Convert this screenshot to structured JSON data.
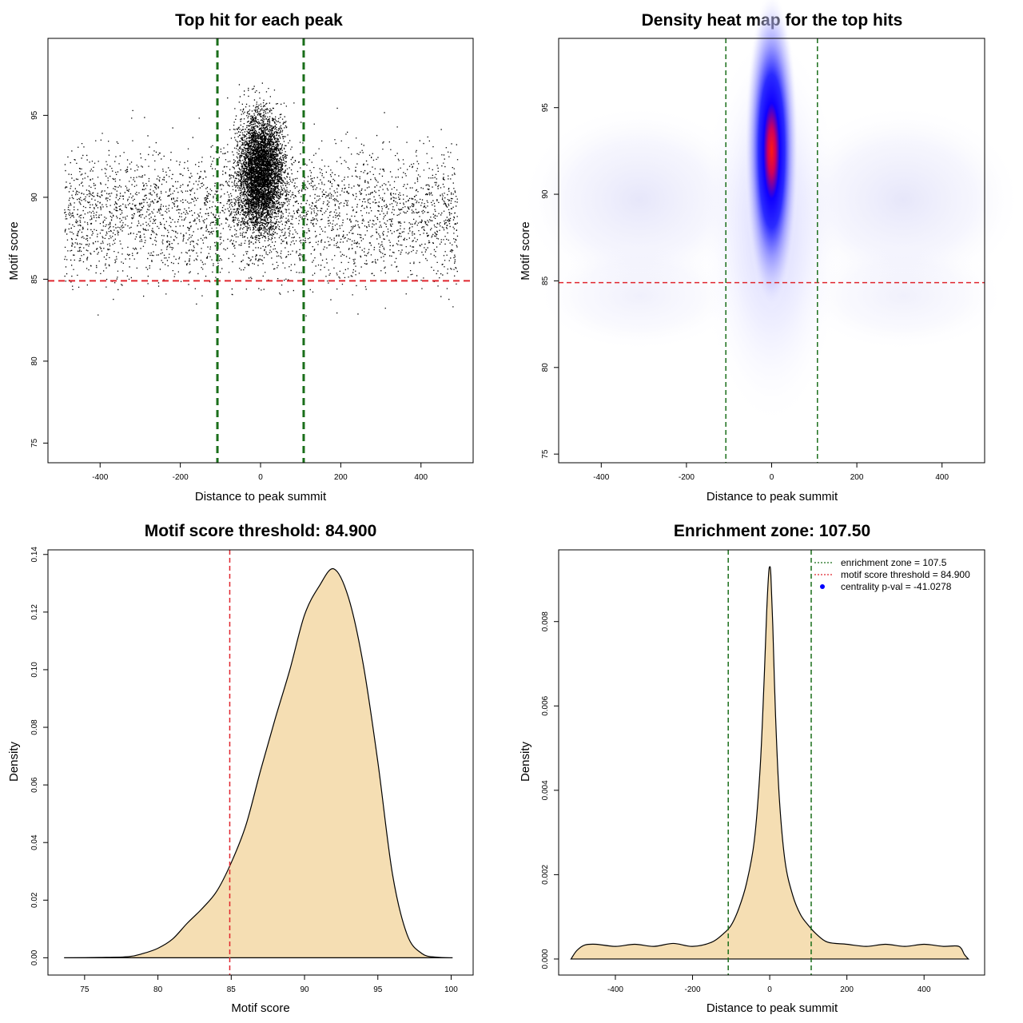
{
  "colors": {
    "threshold_line": "#e0262e",
    "zone_line": "#1a6e1a",
    "density_fill": "#f5deb3",
    "heat_low": "#ffffff",
    "heat_mid": "#0000ff",
    "heat_high": "#ff0000",
    "points": "#000000",
    "legend_dot": "#0000ff"
  },
  "chart_data": [
    {
      "id": "scatter",
      "type": "scatter",
      "title": "Top hit for each peak",
      "xlabel": "Distance to peak summit",
      "ylabel": "Motif score",
      "xlim": [
        -530,
        530
      ],
      "ylim": [
        73.8,
        99.7
      ],
      "xticks": [
        -400,
        -200,
        0,
        200,
        400
      ],
      "xtick_labels": [
        "-400",
        "-200",
        "0",
        "200",
        "400"
      ],
      "yticks": [
        75,
        80,
        85,
        90,
        95
      ],
      "ytick_labels": [
        "75",
        "80",
        "85",
        "90",
        "95"
      ],
      "hline": 84.9,
      "vlines": [
        -107.5,
        107.5
      ],
      "points_note": "Dense cloud of motif hits; high concentration between -100 and 100 bp around score 89-95, sparse background between -490 and 490 bp with scores 80-97"
    },
    {
      "id": "heatmap",
      "type": "heatmap",
      "title": "Density heat map for the top hits",
      "xlabel": "Distance to peak summit",
      "ylabel": "Motif score",
      "xlim": [
        -500,
        500
      ],
      "ylim": [
        74.5,
        99
      ],
      "xticks": [
        -400,
        -200,
        0,
        200,
        400
      ],
      "xtick_labels": [
        "-400",
        "-200",
        "0",
        "200",
        "400"
      ],
      "yticks": [
        75,
        80,
        85,
        90,
        95
      ],
      "ytick_labels": [
        "75",
        "80",
        "85",
        "90",
        "95"
      ],
      "hline": 84.9,
      "vlines": [
        -107.5,
        107.5
      ],
      "peak": {
        "x": 0,
        "y": 92.5
      }
    },
    {
      "id": "score-density",
      "type": "area",
      "title": "Motif score threshold: 84.900",
      "xlabel": "Motif score",
      "ylabel": "Density",
      "xlim": [
        72.5,
        101.5
      ],
      "ylim": [
        -0.006,
        0.1416
      ],
      "xticks": [
        75,
        80,
        85,
        90,
        95,
        100
      ],
      "xtick_labels": [
        "75",
        "80",
        "85",
        "90",
        "95",
        "100"
      ],
      "yticks": [
        0,
        0.02,
        0.04,
        0.06,
        0.08,
        0.1,
        0.12,
        0.14
      ],
      "ytick_labels": [
        "0.00",
        "0.02",
        "0.04",
        "0.06",
        "0.08",
        "0.10",
        "0.12",
        "0.14"
      ],
      "vline": 84.9,
      "x": [
        73.6,
        76,
        78,
        79,
        80,
        81,
        82,
        83,
        84,
        85,
        86,
        87,
        88,
        89,
        90,
        91,
        92,
        93,
        94,
        95,
        96,
        97,
        98,
        99,
        100.1
      ],
      "y": [
        0,
        0.0001,
        0.0004,
        0.0015,
        0.0033,
        0.0065,
        0.012,
        0.017,
        0.023,
        0.033,
        0.046,
        0.065,
        0.083,
        0.1,
        0.119,
        0.129,
        0.135,
        0.125,
        0.102,
        0.068,
        0.029,
        0.008,
        0.0015,
        0.0002,
        0
      ]
    },
    {
      "id": "distance-density",
      "type": "area",
      "title": "Enrichment zone: 107.50",
      "xlabel": "Distance to peak summit",
      "ylabel": "Density",
      "xlim": [
        -547,
        557
      ],
      "ylim": [
        -0.00038,
        0.0097
      ],
      "xticks": [
        -400,
        -200,
        0,
        200,
        400
      ],
      "xtick_labels": [
        "-400",
        "-200",
        "0",
        "200",
        "400"
      ],
      "yticks": [
        0,
        0.002,
        0.004,
        0.006,
        0.008
      ],
      "ytick_labels": [
        "0.000",
        "0.002",
        "0.004",
        "0.006",
        "0.008"
      ],
      "vlines": [
        -107.5,
        107.5
      ],
      "x": [
        -515,
        -500,
        -480,
        -450,
        -400,
        -350,
        -300,
        -250,
        -200,
        -150,
        -120,
        -100,
        -80,
        -60,
        -40,
        -25,
        -15,
        -8,
        -3,
        0,
        3,
        8,
        15,
        25,
        40,
        60,
        80,
        100,
        120,
        150,
        200,
        250,
        300,
        350,
        400,
        450,
        490,
        505,
        515
      ],
      "y": [
        0,
        0.0002,
        0.00033,
        0.00035,
        0.0003,
        0.00035,
        0.0003,
        0.00037,
        0.0003,
        0.0004,
        0.0006,
        0.0008,
        0.0012,
        0.0018,
        0.0028,
        0.0045,
        0.0065,
        0.0082,
        0.0091,
        0.0093,
        0.0091,
        0.0079,
        0.0058,
        0.0038,
        0.0023,
        0.0015,
        0.00105,
        0.0008,
        0.0006,
        0.0004,
        0.00035,
        0.0003,
        0.00035,
        0.0003,
        0.00035,
        0.0003,
        0.0003,
        0.0001,
        0
      ],
      "legend": {
        "position": "top-right",
        "entries": [
          {
            "label": "enrichment zone = 107.5",
            "kind": "line",
            "color_key": "zone_line"
          },
          {
            "label": "motif score threshold = 84.900",
            "kind": "line",
            "color_key": "threshold_line"
          },
          {
            "label": "centrality p-val = -41.0278",
            "kind": "dot",
            "color_key": "legend_dot"
          }
        ]
      }
    }
  ]
}
